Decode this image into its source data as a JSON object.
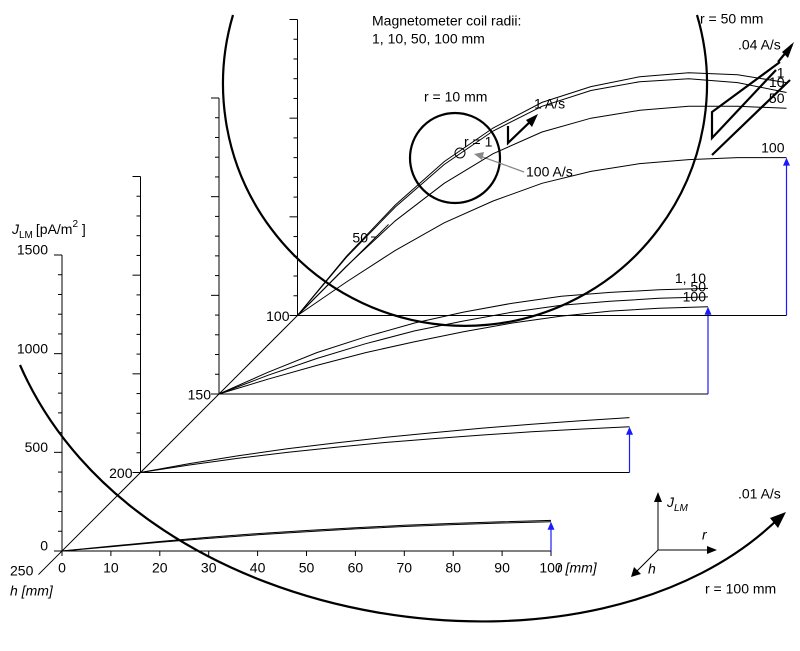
{
  "chart_data": {
    "type": "waterfall",
    "title_lines": [
      "Magnetometer coil radii:",
      "1, 10, 50, 100 mm"
    ],
    "y_label": {
      "symbol": "J",
      "subscript": "LM",
      "unit": "[pA/m",
      "superscript": "2",
      "unit_end": " ]"
    },
    "x_label": "r [mm]",
    "h_label": "h [mm]",
    "x": [
      0,
      10,
      20,
      30,
      40,
      50,
      60,
      70,
      80,
      90,
      100
    ],
    "xlim": [
      0,
      100
    ],
    "xticks": [
      0,
      10,
      20,
      30,
      40,
      50,
      60,
      70,
      80,
      90,
      100
    ],
    "ylim": [
      0,
      1500
    ],
    "yticks": [
      0,
      500,
      1000,
      1500
    ],
    "yminorticks": [
      100,
      200,
      300,
      400,
      600,
      700,
      800,
      900,
      1100,
      1200,
      1300,
      1400
    ],
    "hticks": [
      250,
      200,
      150,
      100,
      50
    ],
    "planes": [
      {
        "h": 250,
        "series": [
          {
            "values": [
              0,
              25,
              48,
              70,
              88,
              104,
              118,
              130,
              140,
              148,
              155
            ]
          },
          {
            "values": [
              0,
              22,
              44,
              64,
              82,
              98,
              112,
              124,
              134,
              142,
              148
            ]
          }
        ]
      },
      {
        "h": 200,
        "series": [
          {
            "values": [
              0,
              45,
              85,
              120,
              150,
              178,
              202,
              225,
              245,
              262,
              278
            ]
          },
          {
            "values": [
              0,
              38,
              72,
              102,
              128,
              152,
              172,
              190,
              206,
              220,
              232
            ]
          }
        ]
      },
      {
        "h": 150,
        "series": [
          {
            "name": "1, 10",
            "values": [
              0,
              110,
              210,
              290,
              360,
              415,
              460,
              495,
              515,
              528,
              535
            ]
          },
          {
            "name": "50",
            "values": [
              0,
              95,
              180,
              255,
              320,
              370,
              415,
              450,
              470,
              485,
              492
            ]
          },
          {
            "name": "100",
            "values": [
              0,
              75,
              145,
              210,
              265,
              315,
              360,
              395,
              420,
              435,
              442
            ]
          }
        ]
      },
      {
        "h": 100,
        "series": [
          {
            "name": "1",
            "values": [
              0,
              300,
              560,
              780,
              950,
              1080,
              1160,
              1210,
              1230,
              1220,
              1180
            ]
          },
          {
            "name": "10",
            "values": [
              0,
              295,
              550,
              765,
              935,
              1060,
              1140,
              1185,
              1200,
              1180,
              1130
            ]
          },
          {
            "name": "50",
            "values": [
              0,
              250,
              480,
              670,
              820,
              930,
              1000,
              1040,
              1060,
              1060,
              1050
            ]
          },
          {
            "name": "100",
            "values": [
              0,
              170,
              330,
              470,
              580,
              670,
              730,
              770,
              790,
              800,
              800
            ]
          }
        ]
      }
    ],
    "annotations": {
      "r50": "r = 50 mm",
      "rate50": ".04 A/s",
      "r10": "r = 10 mm",
      "rate10": "1 A/s",
      "r1": "r = 1",
      "rate1": "100 A/s",
      "r100": "r = 100 mm",
      "rate100": ".01 A/s"
    },
    "glyph": {
      "j": "J",
      "j_sub": "LM",
      "r": "r",
      "h": "h"
    }
  }
}
